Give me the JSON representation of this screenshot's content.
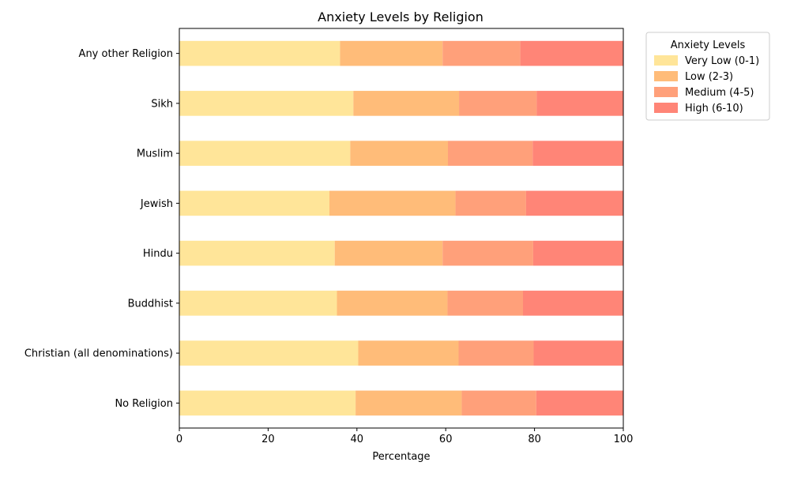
{
  "chart_data": {
    "type": "bar",
    "orientation": "horizontal",
    "stacked": true,
    "title": "Anxiety Levels by Religion",
    "xlabel": "Percentage",
    "ylabel": "",
    "xlim": [
      0,
      100
    ],
    "xticks": [
      0,
      20,
      40,
      60,
      80,
      100
    ],
    "grid": false,
    "legend": {
      "title": "Anxiety Levels",
      "placement": "outside-top-right"
    },
    "categories": [
      "No Religion",
      "Christian (all denominations)",
      "Buddhist",
      "Hindu",
      "Jewish",
      "Muslim",
      "Sikh",
      "Any other Religion"
    ],
    "series": [
      {
        "name": "Very Low (0-1)",
        "color": "#FFE599",
        "values": [
          39.7,
          40.3,
          35.5,
          35.0,
          33.8,
          38.5,
          39.2,
          36.2
        ]
      },
      {
        "name": "Low (2-3)",
        "color": "#FFBC79",
        "values": [
          23.9,
          22.6,
          24.9,
          24.3,
          28.4,
          22.0,
          23.8,
          23.1
        ]
      },
      {
        "name": "Medium (4-5)",
        "color": "#FFA07A",
        "values": [
          16.8,
          16.9,
          17.0,
          20.4,
          15.9,
          19.1,
          17.5,
          17.5
        ]
      },
      {
        "name": "High (6-10)",
        "color": "#FF8577",
        "values": [
          19.6,
          20.2,
          22.6,
          20.3,
          21.9,
          20.4,
          19.5,
          23.2
        ]
      }
    ]
  }
}
